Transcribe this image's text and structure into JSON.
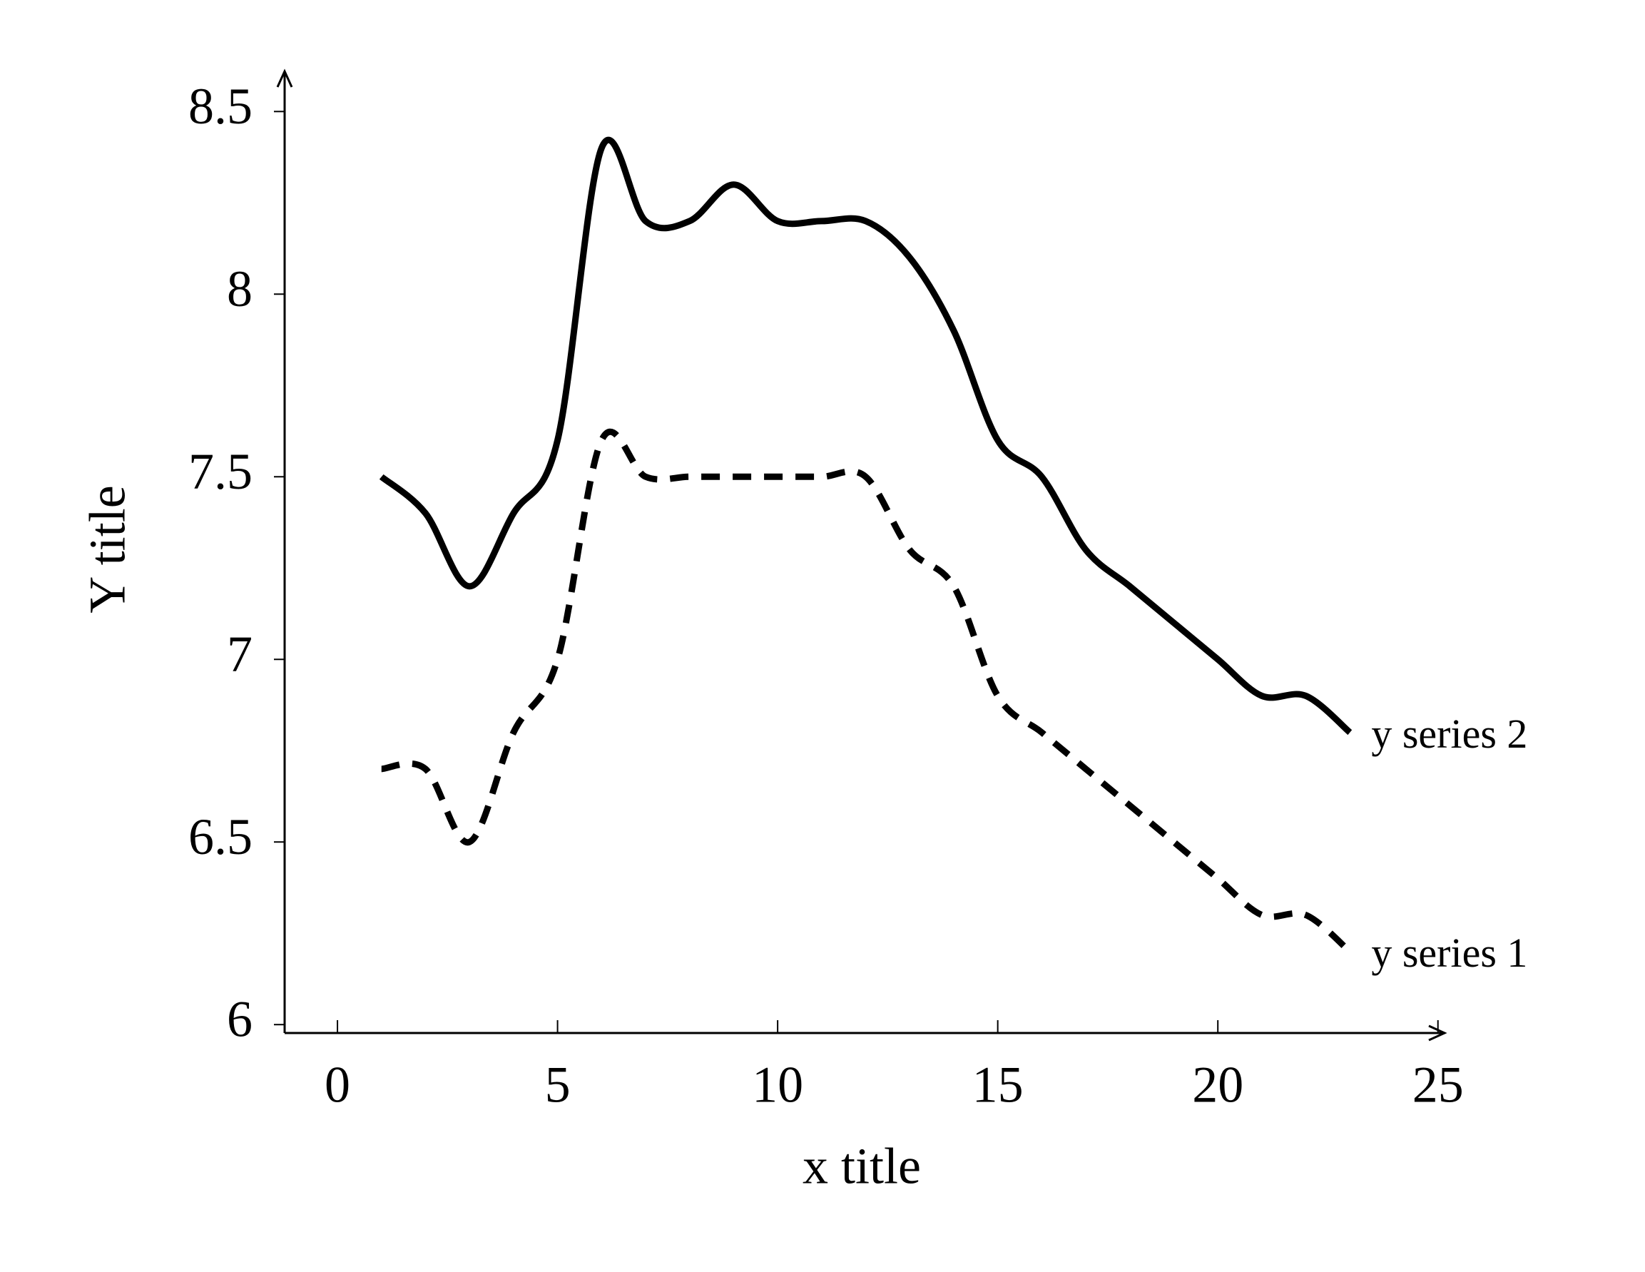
{
  "chart_data": {
    "type": "line",
    "x_label": "x title",
    "y_label": "Y title",
    "x": [
      1,
      2,
      3,
      4,
      5,
      6,
      7,
      8,
      9,
      10,
      11,
      12,
      13,
      14,
      15,
      16,
      17,
      18,
      19,
      20,
      21,
      22,
      23
    ],
    "series": [
      {
        "name": "y series 1",
        "color": "#000000",
        "line_style": "dashed",
        "values": [
          6.7,
          6.7,
          6.5,
          6.8,
          7.0,
          7.6,
          7.5,
          7.5,
          7.5,
          7.5,
          7.5,
          7.5,
          7.3,
          7.2,
          6.9,
          6.8,
          6.7,
          6.6,
          6.5,
          6.4,
          6.3,
          6.3,
          6.2
        ]
      },
      {
        "name": "y series 2",
        "color": "#000000",
        "line_style": "solid",
        "values": [
          7.5,
          7.4,
          7.2,
          7.4,
          7.6,
          8.4,
          8.2,
          8.2,
          8.3,
          8.2,
          8.2,
          8.2,
          8.1,
          7.9,
          7.6,
          7.5,
          7.3,
          7.2,
          7.1,
          7.0,
          6.9,
          6.9,
          6.8
        ]
      }
    ],
    "xlim": [
      -1.2,
      25.15
    ],
    "ylim": [
      5.977,
      8.61
    ],
    "xticks": [
      0,
      5,
      10,
      15,
      20,
      25
    ],
    "yticks": [
      6,
      6.5,
      7,
      7.5,
      8,
      8.5
    ]
  }
}
